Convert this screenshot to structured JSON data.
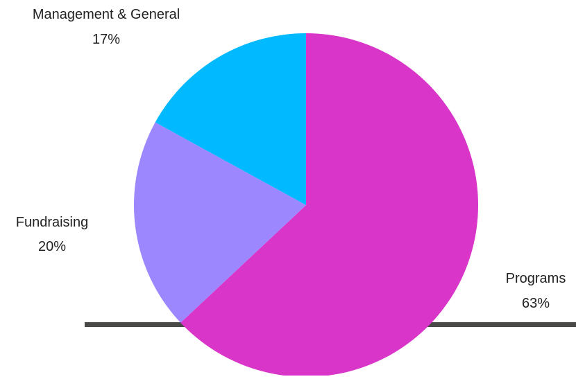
{
  "chart_data": {
    "type": "pie",
    "title": "",
    "start_angle_deg": 0,
    "direction": "clockwise",
    "slices": [
      {
        "label": "Programs",
        "value": 63,
        "value_label": "63%",
        "color": "#d935c9"
      },
      {
        "label": "Fundraising",
        "value": 20,
        "value_label": "20%",
        "color": "#9d87ff"
      },
      {
        "label": "Management & General",
        "value": 17,
        "value_label": "17%",
        "color": "#00b9ff"
      }
    ]
  }
}
